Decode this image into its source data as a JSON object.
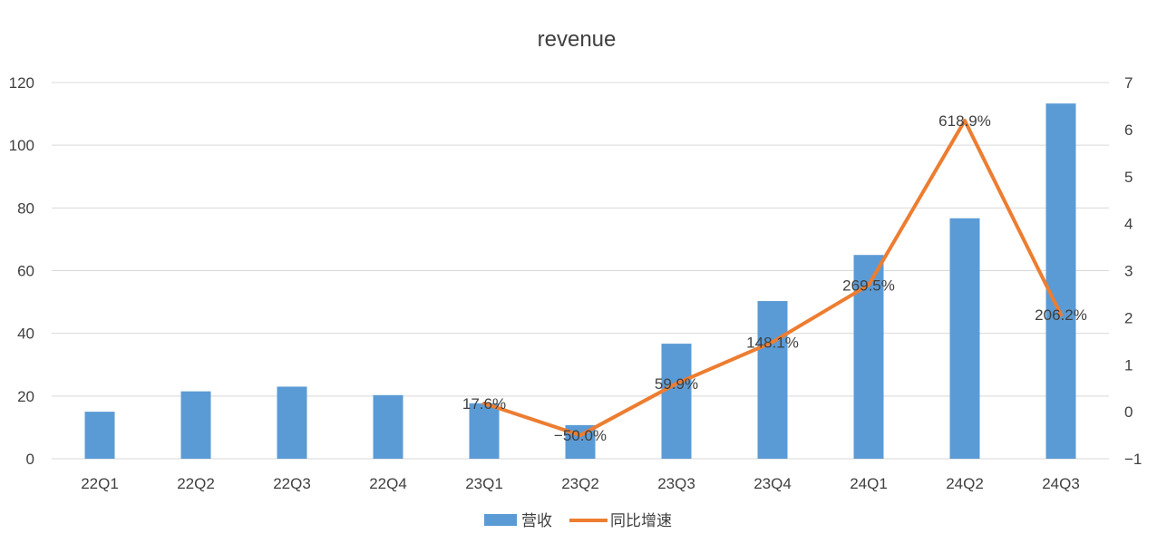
{
  "chart_data": {
    "type": "bar",
    "title": "revenue",
    "categories": [
      "22Q1",
      "22Q2",
      "22Q3",
      "22Q4",
      "23Q1",
      "23Q2",
      "23Q3",
      "23Q4",
      "24Q1",
      "24Q2",
      "24Q3"
    ],
    "series": [
      {
        "name": "营收",
        "type": "bar",
        "axis": "left",
        "color": "#5B9BD5",
        "values": [
          15,
          21.5,
          23,
          20.3,
          17.7,
          10.7,
          36.7,
          50.3,
          65,
          76.7,
          113.3
        ]
      },
      {
        "name": "同比增速",
        "type": "line",
        "axis": "right",
        "color": "#ED7D31",
        "values": [
          null,
          null,
          null,
          null,
          0.176,
          -0.5,
          0.599,
          1.481,
          2.695,
          6.189,
          2.062
        ],
        "labels": [
          "",
          "",
          "",
          "",
          "17.6%",
          "-50.0%",
          "59.9%",
          "148.1%",
          "269.5%",
          "618.9%",
          "206.2%"
        ]
      }
    ],
    "y_left": {
      "min": 0,
      "max": 120,
      "ticks": [
        "0",
        "20",
        "40",
        "60",
        "80",
        "100",
        "120"
      ]
    },
    "y_right": {
      "min": -1,
      "max": 7,
      "ticks": [
        "-1",
        "0",
        "1",
        "2",
        "3",
        "4",
        "5",
        "6",
        "7"
      ]
    },
    "grid": true,
    "legend": {
      "position": "bottom",
      "entries": [
        "营收",
        "同比增速"
      ]
    }
  }
}
